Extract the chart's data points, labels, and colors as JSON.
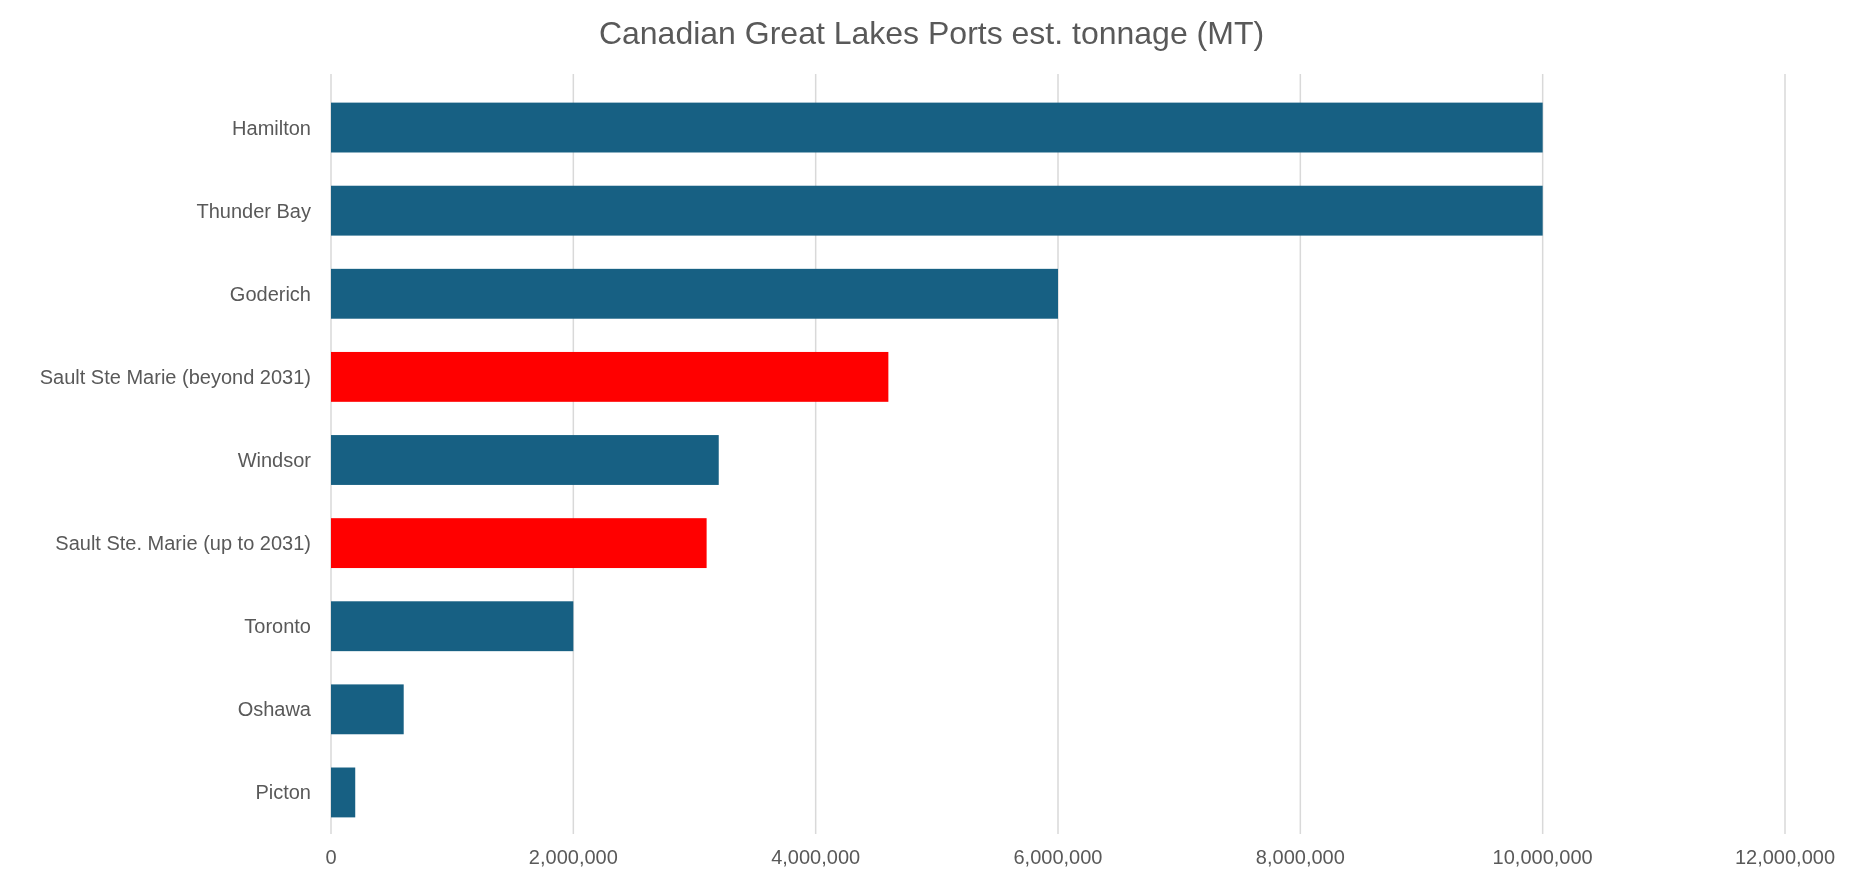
{
  "chart_data": {
    "type": "bar",
    "orientation": "horizontal",
    "title": "Canadian Great Lakes Ports est. tonnage (MT)",
    "categories": [
      "Hamilton",
      "Thunder Bay",
      "Goderich",
      "Sault Ste Marie (beyond 2031)",
      "Windsor",
      "Sault Ste. Marie (up to 2031)",
      "Toronto",
      "Oshawa",
      "Picton"
    ],
    "values": [
      10000000,
      10000000,
      6000000,
      4600000,
      3200000,
      3100000,
      2000000,
      600000,
      200000
    ],
    "colors": [
      "#176083",
      "#176083",
      "#176083",
      "#ff0000",
      "#176083",
      "#ff0000",
      "#176083",
      "#176083",
      "#176083"
    ],
    "xlim": [
      0,
      12000000
    ],
    "xticks": [
      0,
      {
        "value": 2000000,
        "label": "2,000,000"
      },
      {
        "value": 4000000,
        "label": "4,000,000"
      },
      {
        "value": 6000000,
        "label": "6,000,000"
      },
      {
        "value": 8000000,
        "label": "8,000,000"
      },
      {
        "value": 10000000,
        "label": "10,000,000"
      },
      {
        "value": 12000000,
        "label": "12,000,000"
      }
    ],
    "grid": "x"
  }
}
